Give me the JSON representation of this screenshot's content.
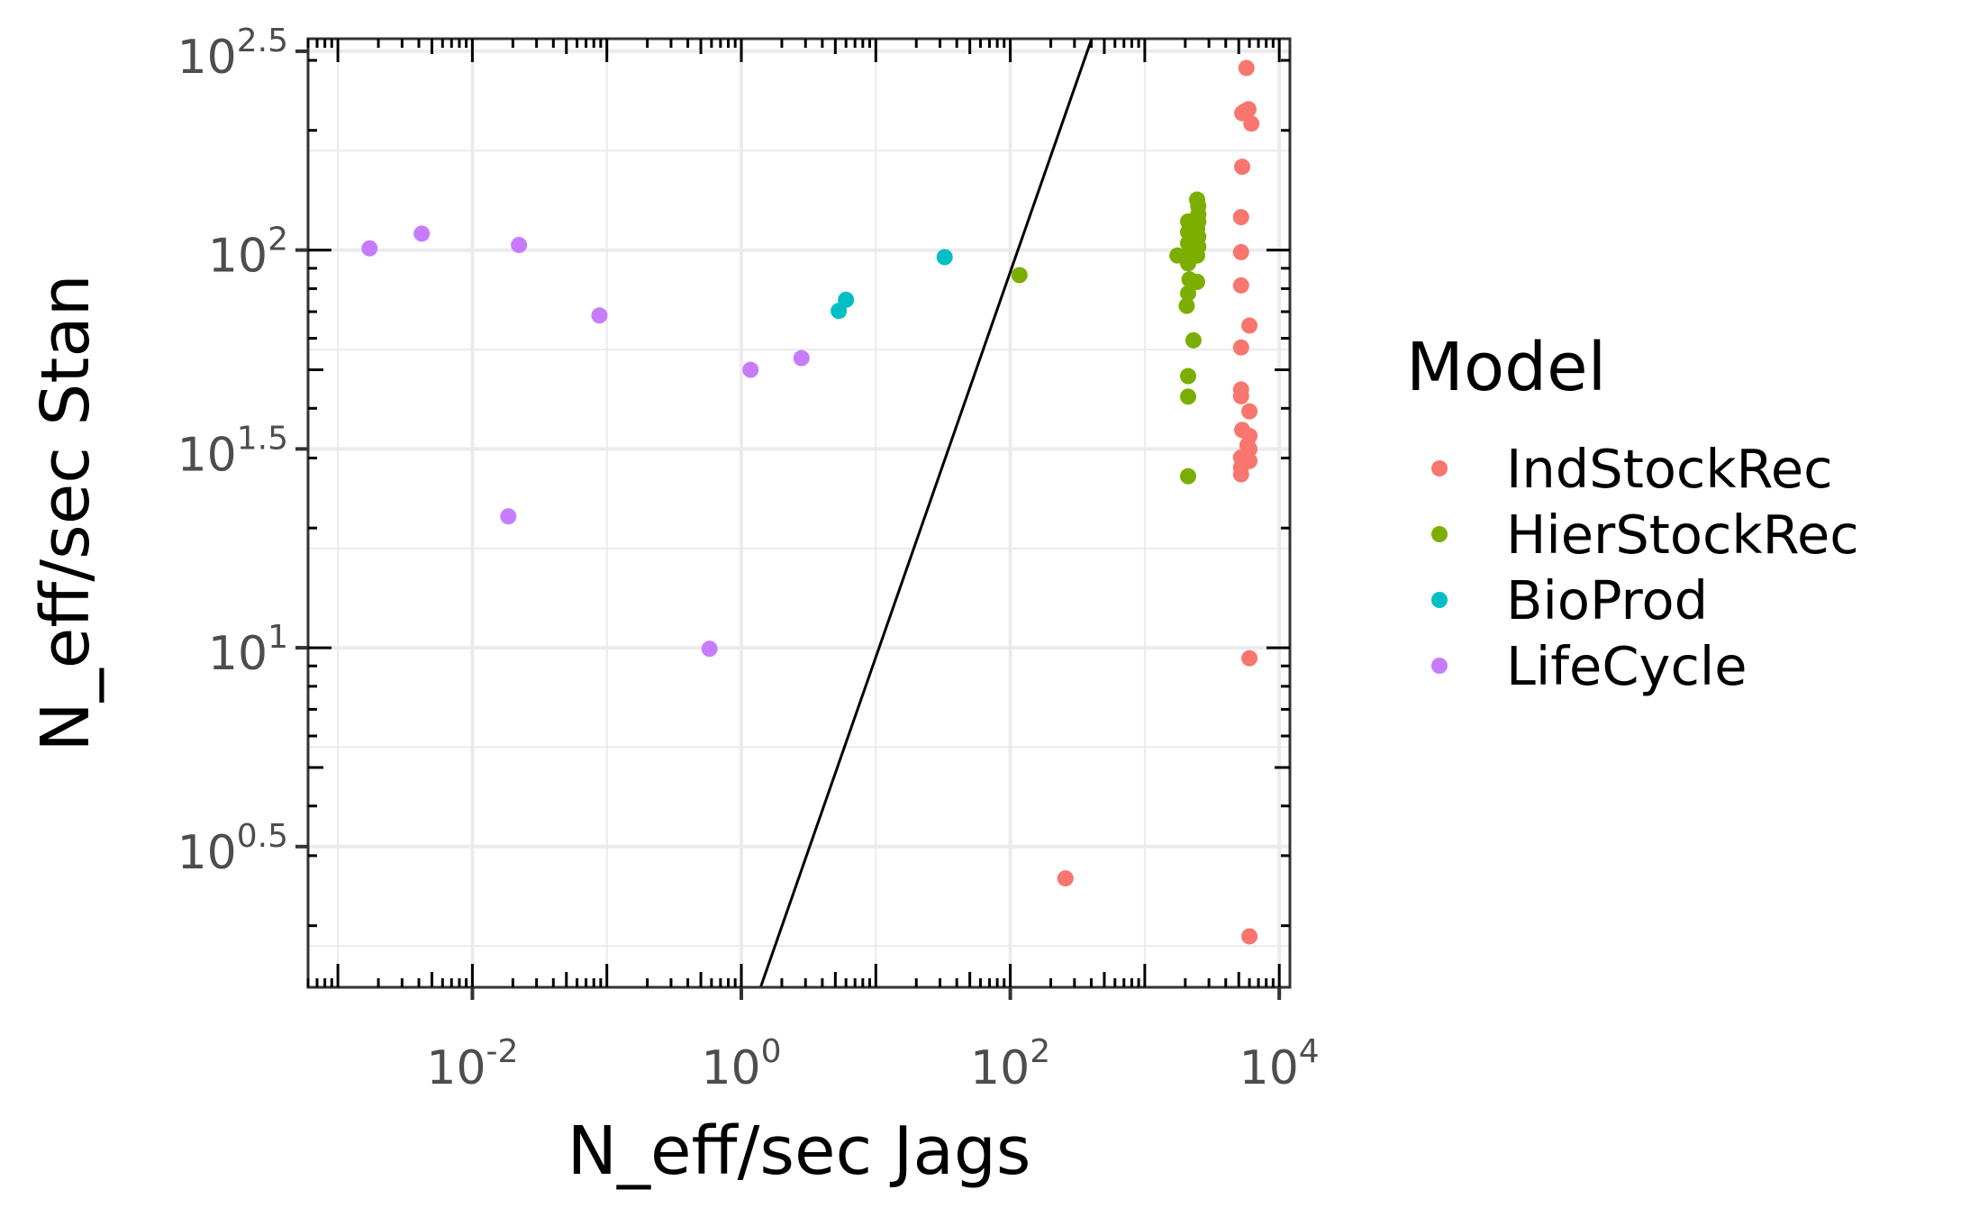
{
  "chart_data": {
    "type": "scatter",
    "title": "",
    "xlabel": "N_eff/sec Jags",
    "ylabel": "N_eff/sec  Stan",
    "x_scale": "log10",
    "y_scale": "log10",
    "xlim": [
      0.0006,
      12000
    ],
    "ylim": [
      1.4,
      340
    ],
    "x_ticks": [
      {
        "base": "10",
        "exp": "-2",
        "value": 0.01
      },
      {
        "base": "10",
        "exp": "0",
        "value": 1
      },
      {
        "base": "10",
        "exp": "2",
        "value": 100
      },
      {
        "base": "10",
        "exp": "4",
        "value": 10000
      }
    ],
    "y_ticks": [
      {
        "base": "10",
        "exp": "0.5",
        "value": 3.162
      },
      {
        "base": "10",
        "exp": "1",
        "value": 10
      },
      {
        "base": "10",
        "exp": "1.5",
        "value": 31.62
      },
      {
        "base": "10",
        "exp": "2",
        "value": 100
      },
      {
        "base": "10",
        "exp": "2.5",
        "value": 316.2
      }
    ],
    "grid": true,
    "reference_line": {
      "x": [
        1.39,
        403
      ],
      "y": [
        1.4,
        340
      ]
    },
    "legend": {
      "title": "Model",
      "position": "right"
    },
    "series": [
      {
        "name": "IndStockRec",
        "color": "#F8766D",
        "points": [
          [
            5700,
            287
          ],
          [
            5500,
            223
          ],
          [
            5300,
            221
          ],
          [
            5900,
            226
          ],
          [
            6200,
            208
          ],
          [
            5300,
            162
          ],
          [
            5200,
            121
          ],
          [
            5200,
            98.8
          ],
          [
            5200,
            81.5
          ],
          [
            6000,
            64.6
          ],
          [
            5200,
            56.9
          ],
          [
            5200,
            44.6
          ],
          [
            5200,
            42.9
          ],
          [
            6000,
            39.3
          ],
          [
            5300,
            35.3
          ],
          [
            6000,
            34.1
          ],
          [
            5800,
            32.3
          ],
          [
            6000,
            31.6
          ],
          [
            5200,
            30.1
          ],
          [
            6000,
            29.5
          ],
          [
            5200,
            28.4
          ],
          [
            5200,
            27.3
          ],
          [
            6000,
            9.41
          ],
          [
            257,
            2.63
          ],
          [
            6000,
            1.88
          ]
        ]
      },
      {
        "name": "HierStockRec",
        "color": "#7CAE00",
        "points": [
          [
            2450,
            134
          ],
          [
            2500,
            129
          ],
          [
            2500,
            123
          ],
          [
            2500,
            118
          ],
          [
            2100,
            118
          ],
          [
            2450,
            113
          ],
          [
            2100,
            111
          ],
          [
            2500,
            108
          ],
          [
            2100,
            104
          ],
          [
            2500,
            102
          ],
          [
            2300,
            100
          ],
          [
            2100,
            98.2
          ],
          [
            2450,
            96.9
          ],
          [
            1750,
            96.9
          ],
          [
            2100,
            92.6
          ],
          [
            2150,
            84.4
          ],
          [
            2450,
            83.2
          ],
          [
            2100,
            77.9
          ],
          [
            2050,
            72.4
          ],
          [
            2300,
            59.3
          ],
          [
            2100,
            48.2
          ],
          [
            2100,
            42.8
          ],
          [
            2100,
            27.0
          ],
          [
            117,
            86.5
          ]
        ]
      },
      {
        "name": "BioProd",
        "color": "#00BFC4",
        "points": [
          [
            32.5,
            96.0
          ],
          [
            6.0,
            75.0
          ],
          [
            5.3,
            70.3
          ]
        ]
      },
      {
        "name": "LifeCycle",
        "color": "#C77CFF",
        "points": [
          [
            0.00172,
            101
          ],
          [
            0.0042,
            110
          ],
          [
            0.0222,
            103
          ],
          [
            0.088,
            68.5
          ],
          [
            1.17,
            50.0
          ],
          [
            2.8,
            53.5
          ],
          [
            0.0185,
            21.4
          ],
          [
            0.58,
            9.94
          ]
        ]
      }
    ]
  }
}
